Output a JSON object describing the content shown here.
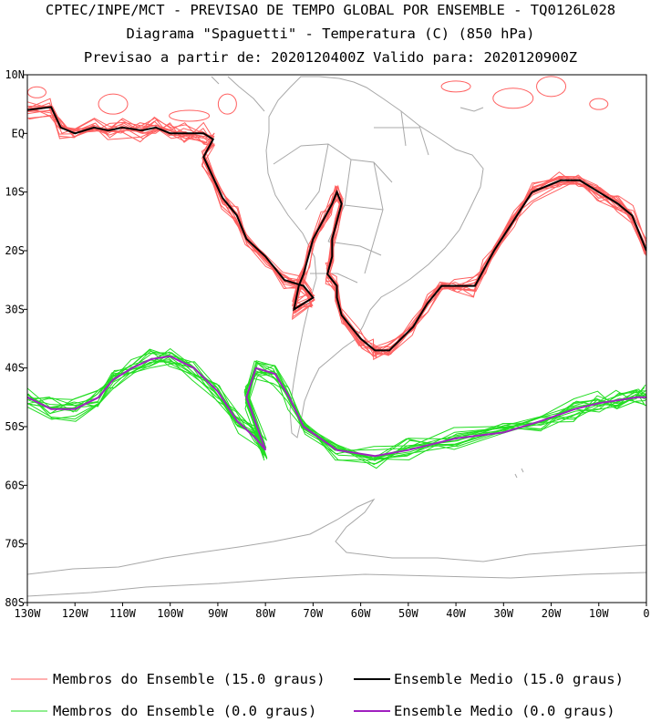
{
  "chart_data": {
    "type": "line",
    "title": "CPTEC/INPE/MCT - PREVISAO DE TEMPO GLOBAL POR ENSEMBLE - TQ0126L028",
    "subtitle": "Diagrama \"Spaguetti\" - Temperatura (C) (850 hPa)",
    "subtitle2": "Previsao a partir de: 2020120400Z  Valido para: 2020120900Z",
    "xlabel": "",
    "ylabel": "",
    "xlim": [
      -130,
      0
    ],
    "ylim": [
      -80,
      10
    ],
    "x_ticks": [
      {
        "value": -130,
        "label": "130W"
      },
      {
        "value": -120,
        "label": "120W"
      },
      {
        "value": -110,
        "label": "110W"
      },
      {
        "value": -100,
        "label": "100W"
      },
      {
        "value": -90,
        "label": "90W"
      },
      {
        "value": -80,
        "label": "80W"
      },
      {
        "value": -70,
        "label": "70W"
      },
      {
        "value": -60,
        "label": "60W"
      },
      {
        "value": -50,
        "label": "50W"
      },
      {
        "value": -40,
        "label": "40W"
      },
      {
        "value": -30,
        "label": "30W"
      },
      {
        "value": -20,
        "label": "20W"
      },
      {
        "value": -10,
        "label": "10W"
      },
      {
        "value": 0,
        "label": "0"
      }
    ],
    "y_ticks": [
      {
        "value": 10,
        "label": "10N"
      },
      {
        "value": 0,
        "label": "EQ"
      },
      {
        "value": -10,
        "label": "10S"
      },
      {
        "value": -20,
        "label": "20S"
      },
      {
        "value": -30,
        "label": "30S"
      },
      {
        "value": -40,
        "label": "40S"
      },
      {
        "value": -50,
        "label": "50S"
      },
      {
        "value": -60,
        "label": "60S"
      },
      {
        "value": -70,
        "label": "70S"
      },
      {
        "value": -80,
        "label": "80S"
      }
    ],
    "legend": [
      {
        "label": "Membros do Ensemble (15.0 graus)",
        "color": "#ff6060",
        "series": "members_15"
      },
      {
        "label": "Ensemble Medio (15.0 graus)",
        "color": "#000000",
        "series": "mean_15"
      },
      {
        "label": "Membros do Ensemble (0.0 graus)",
        "color": "#22dd22",
        "series": "members_0"
      },
      {
        "label": "Ensemble Medio (0.0 graus)",
        "color": "#a020c0",
        "series": "mean_0"
      }
    ],
    "series": [
      {
        "name": "Ensemble Medio (15.0 graus)",
        "key": "mean_15",
        "color": "#000000",
        "x": [
          -130,
          -125,
          -123,
          -120,
          -116,
          -113,
          -110,
          -106,
          -103,
          -100,
          -97,
          -93,
          -91,
          -93,
          -89,
          -86,
          -84,
          -80,
          -76,
          -72,
          -70,
          -74,
          -73,
          -72,
          -71,
          -70,
          -68,
          -66,
          -65,
          -64,
          -65,
          -66,
          -66,
          -67,
          -65,
          -65,
          -64,
          -60,
          -57,
          -57,
          -54,
          -49,
          -46,
          -43,
          -40,
          -36,
          -34,
          -32,
          -28,
          -24,
          -18,
          -14,
          -10,
          -6,
          -3,
          0
        ],
        "y": [
          4,
          4.5,
          1,
          0,
          1,
          0.5,
          1,
          0.5,
          1,
          0,
          0,
          0,
          -1,
          -4,
          -11,
          -14,
          -18,
          -21,
          -25,
          -26,
          -28,
          -30,
          -26,
          -24,
          -21,
          -18,
          -15,
          -12,
          -10,
          -12,
          -15,
          -18,
          -21,
          -24,
          -26,
          -28,
          -31,
          -35,
          -37,
          -37,
          -37,
          -33,
          -29,
          -26,
          -26,
          -26,
          -23,
          -20,
          -15,
          -10,
          -8,
          -8,
          -10,
          -12,
          -14,
          -20
        ]
      },
      {
        "name": "Ensemble Medio (0.0 graus)",
        "key": "mean_0",
        "color": "#a020c0",
        "x": [
          -130,
          -125,
          -120,
          -115,
          -112,
          -108,
          -104,
          -100,
          -95,
          -90,
          -86,
          -82,
          -80,
          -84,
          -82,
          -78,
          -75,
          -72,
          -65,
          -57,
          -50,
          -40,
          -30,
          -22,
          -15,
          -10,
          -6,
          -2,
          0
        ],
        "y": [
          -45,
          -47,
          -47,
          -45,
          -42,
          -40,
          -38.5,
          -38,
          -40,
          -44,
          -49,
          -52,
          -54,
          -45,
          -40,
          -41,
          -45,
          -50,
          -54,
          -55,
          -54,
          -52,
          -51,
          -49,
          -47,
          -46,
          -45.5,
          -45,
          -45
        ]
      }
    ]
  }
}
